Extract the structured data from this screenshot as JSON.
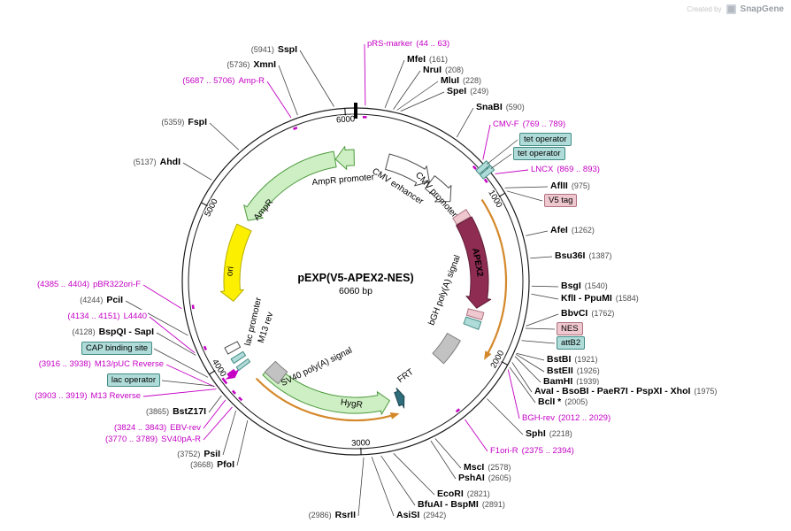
{
  "watermark": {
    "prefix": "Created by",
    "brand": "SnapGene"
  },
  "plasmid": {
    "name": "pEXP(V5-APEX2-NES)",
    "size_label": "6060 bp",
    "length_bp": 6060
  },
  "ticks": [
    {
      "bp": 1000,
      "label": "1000"
    },
    {
      "bp": 2000,
      "label": "2000"
    },
    {
      "bp": 3000,
      "label": "3000"
    },
    {
      "bp": 4000,
      "label": "4000"
    },
    {
      "bp": 5000,
      "label": "5000"
    },
    {
      "bp": 6000,
      "label": "6000"
    }
  ],
  "colors": {
    "primer_label": "#C400C4",
    "enzyme_name": "#000000",
    "enzyme_pos": "#4D4D4D",
    "backbone": "#1A1A1A",
    "orf_arc": "#D4882A",
    "box_teal_bg": "#AFDCD9",
    "box_teal_border": "#448B86",
    "box_pink_bg": "#EFC7CE",
    "box_pink_border": "#AE7280"
  },
  "features": [
    {
      "id": "ampr-promoter",
      "label": "AmpR promoter",
      "start": 5902,
      "end": 6048,
      "direction": -1,
      "fill": "#CDEFC3",
      "stroke": "#4E9A3E"
    },
    {
      "id": "ampr",
      "label": "AmpR",
      "start": 5041,
      "end": 5898,
      "direction": -1,
      "fill": "#CDEFC3",
      "stroke": "#4E9A3E"
    },
    {
      "id": "ori",
      "label": "ori",
      "start": 4391,
      "end": 4979,
      "direction": -1,
      "fill": "#FCF000",
      "stroke": "#B8AE00"
    },
    {
      "id": "cmv-enhancer",
      "label": "CMV enhancer",
      "start": 250,
      "end": 615,
      "direction": 1,
      "fill": "#FFFFFF",
      "stroke": "#4D4D4D"
    },
    {
      "id": "cmv-promoter",
      "label": "CMV promoter",
      "start": 620,
      "end": 838,
      "direction": 1,
      "fill": "#FFFFFF",
      "stroke": "#4D4D4D"
    },
    {
      "id": "tet-operator-1",
      "label": "tet operator",
      "start": 796,
      "end": 826,
      "direction": 0,
      "fill": "#AFDCD9",
      "stroke": "#448B86"
    },
    {
      "id": "tet-operator-2",
      "label": "tet operator",
      "start": 832,
      "end": 862,
      "direction": 0,
      "fill": "#AFDCD9",
      "stroke": "#448B86"
    },
    {
      "id": "v5-tag",
      "label": "V5 tag",
      "start": 958,
      "end": 1020,
      "direction": 0,
      "fill": "#EFC7CE",
      "stroke": "#AE7280"
    },
    {
      "id": "apex2",
      "label": "APEX2",
      "start": 1025,
      "end": 1725,
      "direction": 1,
      "fill": "#8E2C51",
      "stroke": "#5E1D36"
    },
    {
      "id": "nes",
      "label": "NES",
      "start": 1745,
      "end": 1800,
      "direction": 0,
      "fill": "#EFC7CE",
      "stroke": "#AE7280"
    },
    {
      "id": "attb2",
      "label": "attB2",
      "start": 1815,
      "end": 1875,
      "direction": 0,
      "fill": "#AFDCD9",
      "stroke": "#448B86"
    },
    {
      "id": "bgh-polya-signal",
      "label": "bGH poly(A) signal",
      "start": 2012,
      "end": 2239,
      "direction": 0,
      "fill": "#C2C2C2",
      "stroke": "#7F7F7F"
    },
    {
      "id": "frt",
      "label": "FRT",
      "start": 2645,
      "end": 2706,
      "direction": -1,
      "fill": "#2E6D79",
      "stroke": "#1C4450"
    },
    {
      "id": "hygr",
      "label": "HygR",
      "start": 2762,
      "end": 3785,
      "direction": -1,
      "fill": "#CDEFC3",
      "stroke": "#4E9A3E"
    },
    {
      "id": "sv40-polya-signal",
      "label": "SV40 poly(A) signal",
      "start": 3655,
      "end": 3790,
      "direction": 0,
      "fill": "#C2C2C2",
      "stroke": "#7F7F7F"
    },
    {
      "id": "m13-rev",
      "label": "M13 rev",
      "start": 3898,
      "end": 3942,
      "direction": -1,
      "fill": "#C400C4",
      "stroke": "#C400C4"
    },
    {
      "id": "lac-operator",
      "label": "lac operator",
      "start": 3918,
      "end": 3944,
      "direction": 0,
      "fill": "#AFDCD9",
      "stroke": "#448B86"
    },
    {
      "id": "cap-binding-site",
      "label": "CAP binding site",
      "start": 3974,
      "end": 4008,
      "direction": 0,
      "fill": "#AFDCD9",
      "stroke": "#448B86"
    },
    {
      "id": "lac-promoter",
      "label": "lac promoter",
      "start": 4046,
      "end": 4092,
      "direction": 0,
      "fill": "#FFFFFF",
      "stroke": "#4D4D4D"
    }
  ],
  "orf_arcs": [
    {
      "start": 960,
      "end": 2000,
      "direction": 1
    },
    {
      "start": 2770,
      "end": 3800,
      "direction": -1
    }
  ],
  "primer_sites": [
    53,
    779,
    881,
    2020,
    2384,
    3779,
    3833,
    3911,
    3927,
    4143,
    4395,
    5697
  ],
  "callouts": [
    {
      "kind": "enzyme",
      "name": "SspI",
      "pos": "(5941)"
    },
    {
      "kind": "enzyme",
      "name": "XmnI",
      "pos": "(5736)"
    },
    {
      "kind": "primer",
      "name": "Amp-R",
      "pos": "(5687 .. 5706)"
    },
    {
      "kind": "enzyme",
      "name": "FspI",
      "pos": "(5359)"
    },
    {
      "kind": "enzyme",
      "name": "AhdI",
      "pos": "(5137)"
    },
    {
      "kind": "primer",
      "name": "pBR322ori-F",
      "pos": "(4385 .. 4404)"
    },
    {
      "kind": "enzyme",
      "name": "PciI",
      "pos": "(4244)"
    },
    {
      "kind": "primer",
      "name": "L4440",
      "pos": "(4134 .. 4151)"
    },
    {
      "kind": "enzyme",
      "name": "BspQI - SapI",
      "pos": "(4128)"
    },
    {
      "kind": "box-teal",
      "name": "CAP binding site",
      "pos": ""
    },
    {
      "kind": "primer",
      "name": "M13/pUC Reverse",
      "pos": "(3916 .. 3938)"
    },
    {
      "kind": "box-teal",
      "name": "lac operator",
      "pos": ""
    },
    {
      "kind": "primer",
      "name": "M13 Reverse",
      "pos": "(3903 .. 3919)"
    },
    {
      "kind": "enzyme",
      "name": "BstZ17I",
      "pos": "(3865)"
    },
    {
      "kind": "primer",
      "name": "EBV-rev",
      "pos": "(3824 .. 3843)"
    },
    {
      "kind": "primer",
      "name": "SV40pA-R",
      "pos": "(3770 .. 3789)"
    },
    {
      "kind": "enzyme",
      "name": "PsiI",
      "pos": "(3752)"
    },
    {
      "kind": "enzyme",
      "name": "PfoI",
      "pos": "(3668)"
    },
    {
      "kind": "enzyme",
      "name": "RsrII",
      "pos": "(2986)"
    },
    {
      "kind": "primer",
      "name": "pRS-marker",
      "pos": "(44 .. 63)"
    },
    {
      "kind": "enzyme",
      "name": "MfeI",
      "pos": "(161)"
    },
    {
      "kind": "enzyme",
      "name": "NruI",
      "pos": "(208)"
    },
    {
      "kind": "enzyme",
      "name": "MluI",
      "pos": "(228)"
    },
    {
      "kind": "enzyme",
      "name": "SpeI",
      "pos": "(249)"
    },
    {
      "kind": "enzyme",
      "name": "SnaBI",
      "pos": "(590)"
    },
    {
      "kind": "primer",
      "name": "CMV-F",
      "pos": "(769 .. 789)"
    },
    {
      "kind": "box-teal",
      "name": "tet operator",
      "pos": ""
    },
    {
      "kind": "box-teal",
      "name": "tet operator",
      "pos": ""
    },
    {
      "kind": "primer",
      "name": "LNCX",
      "pos": "(869 .. 893)"
    },
    {
      "kind": "enzyme",
      "name": "AflII",
      "pos": "(975)"
    },
    {
      "kind": "box-pink",
      "name": "V5 tag",
      "pos": ""
    },
    {
      "kind": "enzyme",
      "name": "AfeI",
      "pos": "(1262)"
    },
    {
      "kind": "enzyme",
      "name": "Bsu36I",
      "pos": "(1387)"
    },
    {
      "kind": "enzyme",
      "name": "BsgI",
      "pos": "(1540)"
    },
    {
      "kind": "enzyme",
      "name": "KflI - PpuMI",
      "pos": "(1584)"
    },
    {
      "kind": "enzyme",
      "name": "BbvCI",
      "pos": "(1762)"
    },
    {
      "kind": "box-pink",
      "name": "NES",
      "pos": ""
    },
    {
      "kind": "box-teal",
      "name": "attB2",
      "pos": ""
    },
    {
      "kind": "enzyme",
      "name": "BstBI",
      "pos": "(1921)"
    },
    {
      "kind": "enzyme",
      "name": "BstEII",
      "pos": "(1926)"
    },
    {
      "kind": "enzyme",
      "name": "BamHI",
      "pos": "(1939)"
    },
    {
      "kind": "enzyme",
      "name": "AvaI - BsoBI - PaeR7I - PspXI - XhoI",
      "pos": "(1975)"
    },
    {
      "kind": "enzyme",
      "name": "BclI *",
      "pos": "(2005)"
    },
    {
      "kind": "primer",
      "name": "BGH-rev",
      "pos": "(2012 .. 2029)"
    },
    {
      "kind": "enzyme",
      "name": "SphI",
      "pos": "(2218)"
    },
    {
      "kind": "primer",
      "name": "F1ori-R",
      "pos": "(2375 .. 2394)"
    },
    {
      "kind": "enzyme",
      "name": "MscI",
      "pos": "(2578)"
    },
    {
      "kind": "enzyme",
      "name": "PshAI",
      "pos": "(2605)"
    },
    {
      "kind": "enzyme",
      "name": "EcoRI",
      "pos": "(2821)"
    },
    {
      "kind": "enzyme",
      "name": "BfuAI - BspMI",
      "pos": "(2891)"
    },
    {
      "kind": "enzyme",
      "name": "AsiSI",
      "pos": "(2942)"
    }
  ]
}
